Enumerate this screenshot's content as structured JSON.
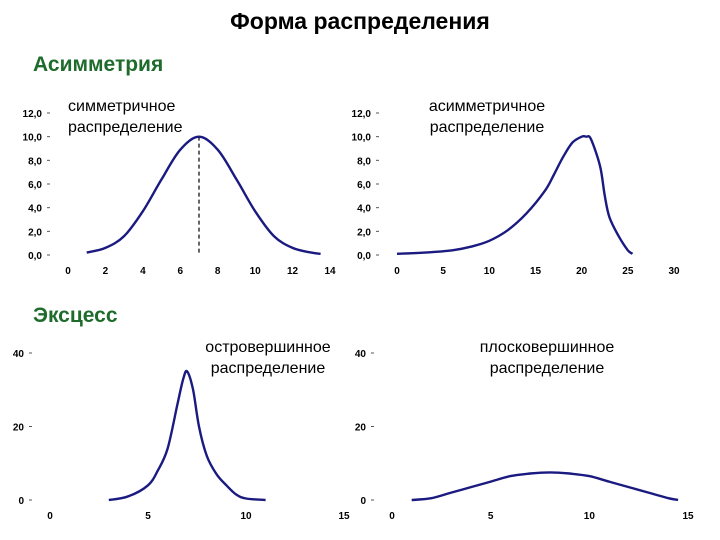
{
  "title": "Форма распределения",
  "sections": {
    "asymmetry": "Асимметрия",
    "kurtosis": "Эксцесс"
  },
  "colors": {
    "curve": "#1a1a80",
    "section": "#1e6b2c"
  },
  "chart_data": [
    {
      "type": "line",
      "caption": [
        "симметричное",
        "распределение"
      ],
      "xlim": [
        0,
        14
      ],
      "ylim": [
        0,
        12
      ],
      "xticks": [
        "0",
        "2",
        "4",
        "6",
        "8",
        "10",
        "12",
        "14"
      ],
      "yticks": [
        "0,0",
        "2,0",
        "4,0",
        "6,0",
        "8,0",
        "10,0",
        "12,0"
      ],
      "x": [
        1,
        2,
        3,
        4,
        5,
        6,
        7,
        8,
        9,
        10,
        11,
        12,
        13,
        13.5
      ],
      "y": [
        0.2,
        0.6,
        1.6,
        3.7,
        6.4,
        8.9,
        10.0,
        8.9,
        6.4,
        3.7,
        1.6,
        0.6,
        0.2,
        0.1
      ],
      "vline": 7
    },
    {
      "type": "line",
      "caption": [
        "асимметричное",
        "распределение"
      ],
      "xlim": [
        0,
        30
      ],
      "ylim": [
        0,
        12
      ],
      "xticks": [
        "0",
        "5",
        "10",
        "15",
        "20",
        "25",
        "30"
      ],
      "yticks": [
        "0,0",
        "2,0",
        "4,0",
        "6,0",
        "8,0",
        "10,0",
        "12,0"
      ],
      "x": [
        0,
        3,
        6,
        8,
        10,
        12,
        14,
        16,
        17,
        18,
        19,
        20,
        20.5,
        21,
        22,
        22.5,
        23,
        24,
        25,
        25.5
      ],
      "y": [
        0.1,
        0.2,
        0.4,
        0.7,
        1.2,
        2.1,
        3.5,
        5.4,
        6.8,
        8.3,
        9.5,
        10.0,
        10.0,
        9.8,
        7.5,
        5.0,
        3.2,
        1.6,
        0.4,
        0.1
      ]
    },
    {
      "type": "line",
      "caption": [
        "островершинное",
        "распределение"
      ],
      "xlim": [
        0,
        15
      ],
      "ylim": [
        0,
        40
      ],
      "xticks": [
        "0",
        "5",
        "10",
        "15"
      ],
      "yticks": [
        "0",
        "20",
        "40"
      ],
      "x": [
        3,
        4,
        5,
        5.5,
        6,
        6.5,
        6.8,
        7,
        7.3,
        7.6,
        8,
        8.5,
        9,
        9.5,
        10,
        11
      ],
      "y": [
        0,
        1,
        4,
        8,
        14,
        26,
        33,
        35,
        30,
        20,
        12,
        7,
        4,
        1.5,
        0.4,
        0
      ]
    },
    {
      "type": "line",
      "caption": [
        "плосковершинное",
        "распределение"
      ],
      "xlim": [
        0,
        15
      ],
      "ylim": [
        0,
        40
      ],
      "xticks": [
        "0",
        "5",
        "10",
        "15"
      ],
      "yticks": [
        "0",
        "20",
        "40"
      ],
      "x": [
        1,
        2,
        3,
        4,
        5,
        6,
        7,
        8,
        9,
        10,
        11,
        12,
        13,
        14,
        14.5
      ],
      "y": [
        0,
        0.5,
        2,
        3.5,
        5,
        6.5,
        7.2,
        7.5,
        7.2,
        6.5,
        5,
        3.5,
        2,
        0.5,
        0
      ]
    }
  ]
}
